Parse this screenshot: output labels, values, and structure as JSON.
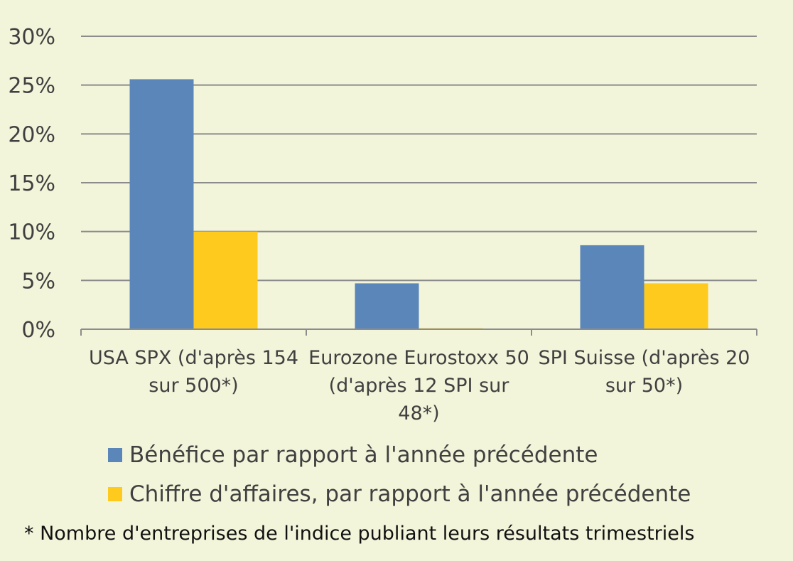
{
  "chart_data": {
    "type": "bar",
    "categories": [
      [
        "USA SPX (d'après 154",
        "sur 500*)"
      ],
      [
        "Eurozone Eurostoxx 50",
        "(d'après 12 SPI sur",
        "48*)"
      ],
      [
        "SPI Suisse (d'après 20",
        "sur 50*)"
      ]
    ],
    "series": [
      {
        "name": "Bénéfice par rapport à l'année précédente",
        "values": [
          25.6,
          4.7,
          8.6
        ],
        "color": "#5b86b9"
      },
      {
        "name": "Chiffre d'affaires, par rapport à l'année précédente",
        "values": [
          10.0,
          0.1,
          4.7
        ],
        "color": "#fdca1d"
      }
    ],
    "yticks": [
      "0%",
      "5%",
      "10%",
      "15%",
      "20%",
      "25%",
      "30%"
    ],
    "ylim": [
      0,
      30
    ],
    "grid": true,
    "legend_position": "bottom"
  },
  "footnote": "* Nombre d'entreprises de l'indice publiant leurs résultats trimestriels"
}
